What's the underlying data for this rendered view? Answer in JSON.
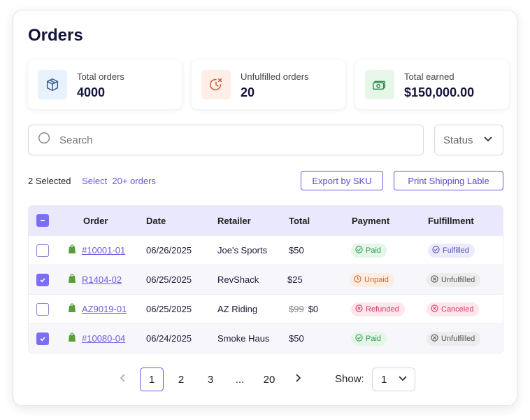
{
  "page": {
    "title": "Orders"
  },
  "stats": [
    {
      "label": "Total orders",
      "value": "4000",
      "icon": "box-icon",
      "color": "#e8f2fd"
    },
    {
      "label": "Unfulfilled orders",
      "value": "20",
      "icon": "clock-x-icon",
      "color": "#fdeee8"
    },
    {
      "label": "Total earned",
      "value": "$150,000.00",
      "icon": "money-icon",
      "color": "#e6f7ea"
    }
  ],
  "search": {
    "placeholder": "Search"
  },
  "status_filter": {
    "label": "Status"
  },
  "selection": {
    "count_text": "2 Selected",
    "select_all_text": "Select  20+ orders"
  },
  "actions": {
    "export_label": "Export by SKU",
    "print_label": "Print Shipping Lable"
  },
  "table": {
    "columns": [
      "Order",
      "Date",
      "Retailer",
      "Total",
      "Payment",
      "Fulfillment"
    ],
    "rows": [
      {
        "checked": false,
        "order": "#10001-01",
        "date": "06/26/2025",
        "retailer": "Joe's Sports",
        "total": "$50",
        "old_total": "",
        "payment": "Paid",
        "fulfillment": "Fulfilled"
      },
      {
        "checked": true,
        "order": "R1404-02",
        "date": "06/25/2025",
        "retailer": "RevShack",
        "total": "$25",
        "old_total": "",
        "payment": "Unpaid",
        "fulfillment": "Unfulfilled"
      },
      {
        "checked": false,
        "order": "AZ9019-01",
        "date": "06/25/2025",
        "retailer": "AZ Riding",
        "total": "$0",
        "old_total": "$99",
        "payment": "Refunded",
        "fulfillment": "Canceled"
      },
      {
        "checked": true,
        "order": "#10080-04",
        "date": "06/24/2025",
        "retailer": "Smoke Haus",
        "total": "$50",
        "old_total": "",
        "payment": "Paid",
        "fulfillment": "Unfulfilled"
      }
    ]
  },
  "pagination": {
    "pages": [
      "1",
      "2",
      "3",
      "...",
      "20"
    ],
    "current": "1",
    "show_label": "Show:",
    "show_value": "1"
  },
  "colors": {
    "accent": "#6a5be0",
    "header_bg": "#e9e8fc"
  }
}
